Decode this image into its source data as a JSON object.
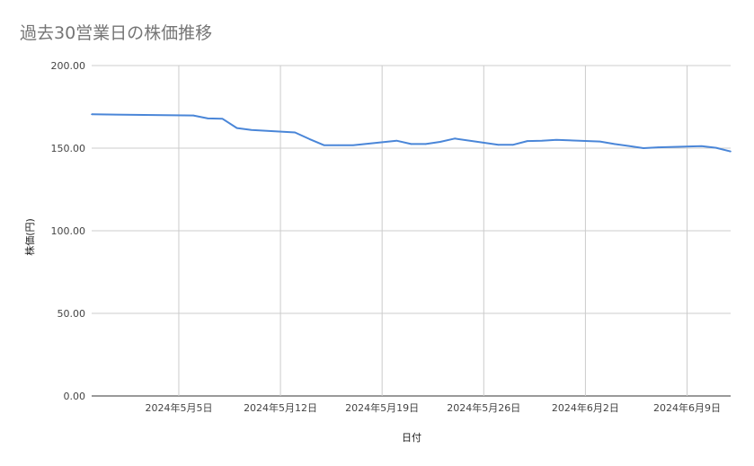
{
  "chart_data": {
    "type": "line",
    "title": "過去30営業日の株価推移",
    "xlabel": "日付",
    "ylabel": "株価(円)",
    "ylim": [
      0,
      200
    ],
    "yticks": [
      "0.00",
      "50.00",
      "100.00",
      "150.00",
      "200.00"
    ],
    "xticks": [
      {
        "date": "2024-05-05",
        "label": "2024年5月5日"
      },
      {
        "date": "2024-05-12",
        "label": "2024年5月12日"
      },
      {
        "date": "2024-05-19",
        "label": "2024年5月19日"
      },
      {
        "date": "2024-05-26",
        "label": "2024年5月26日"
      },
      {
        "date": "2024-06-02",
        "label": "2024年6月2日"
      },
      {
        "date": "2024-06-09",
        "label": "2024年6月9日"
      }
    ],
    "xlim": [
      "2024-04-29",
      "2024-06-12"
    ],
    "grid": true,
    "line_color": "#4a86d8",
    "series": [
      {
        "x": [
          "2024-04-29",
          "2024-05-06",
          "2024-05-07",
          "2024-05-08",
          "2024-05-09",
          "2024-05-10",
          "2024-05-13",
          "2024-05-14",
          "2024-05-15",
          "2024-05-16",
          "2024-05-17",
          "2024-05-20",
          "2024-05-21",
          "2024-05-22",
          "2024-05-23",
          "2024-05-24",
          "2024-05-27",
          "2024-05-28",
          "2024-05-29",
          "2024-05-30",
          "2024-05-31",
          "2024-06-03",
          "2024-06-04",
          "2024-06-05",
          "2024-06-06",
          "2024-06-07",
          "2024-06-10",
          "2024-06-11",
          "2024-06-12"
        ],
        "values": [
          170.5,
          169.8,
          168,
          167.8,
          162.2,
          161,
          159.5,
          155.5,
          151.8,
          151.8,
          151.8,
          154.5,
          152.5,
          152.5,
          153.8,
          155.8,
          152,
          152,
          154.3,
          154.5,
          155,
          154,
          152.5,
          151.3,
          150,
          150.5,
          151.2,
          150.2,
          148
        ]
      }
    ]
  }
}
